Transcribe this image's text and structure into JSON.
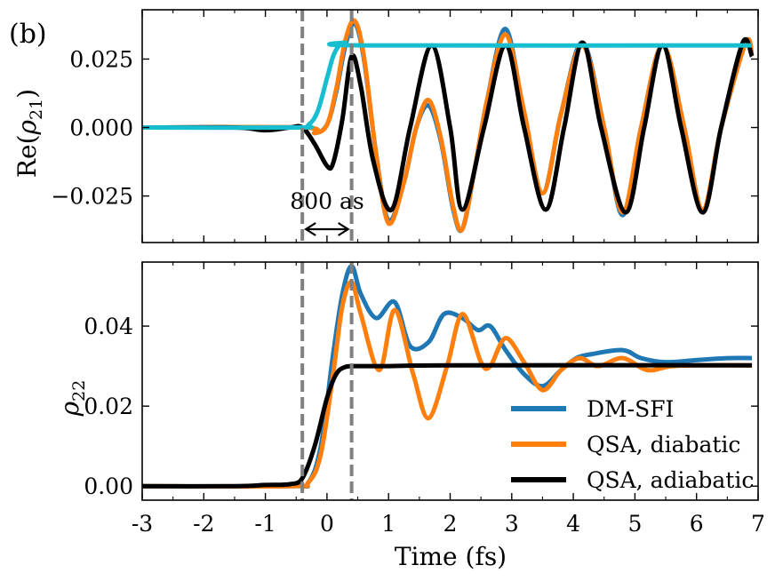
{
  "chart_data": {
    "type": "line",
    "panel_label": "(b)",
    "xlabel": "Time (fs)",
    "xlim": [
      -3,
      7
    ],
    "xticks": [
      -3,
      -2,
      -1,
      0,
      1,
      2,
      3,
      4,
      5,
      6,
      7
    ],
    "xtick_labels": [
      "-3",
      "-2",
      "-1",
      "0",
      "1",
      "2",
      "3",
      "4",
      "5",
      "6",
      "7"
    ],
    "markers": {
      "vlines_x": [
        -0.4,
        0.4
      ],
      "annotation": "800 as",
      "arrow_from": -0.4,
      "arrow_to": 0.4
    },
    "colors": {
      "dmsfi": "#1f77b4",
      "diabatic": "#ff7f0e",
      "adiabatic": "#000000",
      "cyan": "#17becf",
      "vline": "#808080"
    },
    "panels": [
      {
        "id": "top",
        "ylabel": "Re(ρ21)",
        "ylim": [
          -0.042,
          0.043
        ],
        "yticks": [
          -0.025,
          0.0,
          0.025
        ],
        "ytick_labels": [
          "−0.025",
          "0.000",
          "0.025"
        ],
        "series": [
          {
            "name": "DM-SFI",
            "color": "#1f77b4",
            "x": [
              -3,
              -0.4,
              -0.2,
              0,
              0.15,
              0.3,
              0.45,
              0.6,
              0.8,
              1.0,
              1.25,
              1.45,
              1.65,
              1.85,
              2.05,
              2.2,
              2.4,
              2.6,
              2.9,
              3.2,
              3.5,
              3.8,
              4.15,
              4.5,
              4.8,
              5.1,
              5.45,
              5.8,
              6.1,
              6.4,
              6.8,
              6.9
            ],
            "y": [
              0.0,
              0.0,
              -0.002,
              0.001,
              0.013,
              0.03,
              0.038,
              0.025,
              -0.01,
              -0.034,
              -0.02,
              0.0,
              0.008,
              -0.005,
              -0.03,
              -0.037,
              -0.015,
              0.01,
              0.036,
              0.005,
              -0.024,
              0.005,
              0.031,
              0.0,
              -0.032,
              0.0,
              0.03,
              0.0,
              -0.031,
              0.0,
              0.031,
              0.026
            ]
          },
          {
            "name": "QSA, diabatic",
            "color": "#ff7f0e",
            "x": [
              -3,
              -0.4,
              -0.2,
              0,
              0.15,
              0.3,
              0.45,
              0.6,
              0.8,
              1.0,
              1.25,
              1.45,
              1.65,
              1.85,
              2.05,
              2.2,
              2.4,
              2.6,
              2.9,
              3.2,
              3.5,
              3.8,
              4.15,
              4.5,
              4.8,
              5.1,
              5.45,
              5.8,
              6.1,
              6.4,
              6.8,
              6.9
            ],
            "y": [
              0.0,
              0.0,
              -0.002,
              0.001,
              0.014,
              0.032,
              0.039,
              0.026,
              -0.01,
              -0.035,
              -0.02,
              0.0,
              0.01,
              -0.004,
              -0.029,
              -0.037,
              -0.015,
              0.01,
              0.034,
              0.006,
              -0.024,
              0.005,
              0.03,
              0.0,
              -0.031,
              0.0,
              0.03,
              0.0,
              -0.03,
              0.0,
              0.031,
              0.026
            ]
          },
          {
            "name": "QSA, adiabatic",
            "color": "#000000",
            "x": [
              -3,
              -1.5,
              -1.0,
              -0.6,
              -0.4,
              -0.2,
              0.0,
              0.1,
              0.25,
              0.4,
              0.55,
              0.75,
              1.05,
              1.35,
              1.7,
              2.0,
              2.2,
              2.55,
              2.9,
              3.2,
              3.55,
              3.85,
              4.15,
              4.45,
              4.85,
              5.15,
              5.45,
              5.75,
              6.1,
              6.4,
              6.75,
              6.9
            ],
            "y": [
              0.0,
              0.0,
              -0.001,
              0.0,
              0.0,
              -0.006,
              -0.014,
              -0.013,
              0.003,
              0.026,
              0.015,
              -0.012,
              -0.03,
              0.0,
              0.03,
              0.0,
              -0.03,
              0.0,
              0.03,
              0.0,
              -0.03,
              0.0,
              0.031,
              0.0,
              -0.031,
              0.0,
              0.03,
              0.0,
              -0.031,
              0.0,
              0.031,
              0.026
            ]
          },
          {
            "name": "Adiabatic population (cyan)",
            "color": "#17becf",
            "x": [
              -3,
              -0.5,
              -0.3,
              -0.15,
              0.0,
              0.1,
              0.2,
              0.3,
              0.6,
              6.9
            ],
            "y": [
              0.0,
              0.0,
              0.001,
              0.006,
              0.018,
              0.026,
              0.03,
              0.031,
              0.03,
              0.03
            ]
          }
        ]
      },
      {
        "id": "bottom",
        "ylabel": "ρ22",
        "ylim": [
          -0.0035,
          0.056
        ],
        "yticks": [
          0.0,
          0.02,
          0.04
        ],
        "ytick_labels": [
          "0.00",
          "0.02",
          "0.04"
        ],
        "series": [
          {
            "name": "DM-SFI",
            "color": "#1f77b4",
            "x": [
              -3,
              -0.6,
              -0.3,
              -0.1,
              0.1,
              0.25,
              0.4,
              0.55,
              0.8,
              1.1,
              1.35,
              1.65,
              1.9,
              2.2,
              2.45,
              2.65,
              2.9,
              3.2,
              3.5,
              3.8,
              4.05,
              4.3,
              4.8,
              5.1,
              5.5,
              6.0,
              6.5,
              6.9
            ],
            "y": [
              0.0,
              0.0,
              0.001,
              0.01,
              0.033,
              0.048,
              0.055,
              0.048,
              0.042,
              0.046,
              0.035,
              0.036,
              0.043,
              0.042,
              0.039,
              0.04,
              0.034,
              0.028,
              0.025,
              0.029,
              0.032,
              0.033,
              0.034,
              0.032,
              0.031,
              0.0315,
              0.032,
              0.032
            ]
          },
          {
            "name": "QSA, diabatic",
            "color": "#ff7f0e",
            "x": [
              -3,
              -0.6,
              -0.3,
              -0.1,
              0.1,
              0.25,
              0.4,
              0.55,
              0.85,
              1.1,
              1.4,
              1.65,
              1.95,
              2.2,
              2.5,
              2.65,
              2.9,
              3.2,
              3.5,
              3.8,
              4.1,
              4.4,
              4.8,
              5.2,
              5.6,
              6.2,
              6.9
            ],
            "y": [
              0.0,
              0.0,
              0.001,
              0.008,
              0.028,
              0.045,
              0.051,
              0.043,
              0.029,
              0.044,
              0.028,
              0.017,
              0.03,
              0.043,
              0.031,
              0.03,
              0.037,
              0.031,
              0.024,
              0.029,
              0.032,
              0.03,
              0.032,
              0.029,
              0.03,
              0.0302,
              0.0302
            ]
          },
          {
            "name": "QSA, adiabatic",
            "color": "#000000",
            "x": [
              -3,
              -1.5,
              -1.0,
              -0.6,
              -0.4,
              -0.2,
              0.0,
              0.15,
              0.3,
              0.5,
              1.0,
              2.0,
              6.9
            ],
            "y": [
              0.0,
              0.0,
              0.0003,
              0.0005,
              0.002,
              0.01,
              0.022,
              0.028,
              0.0298,
              0.03,
              0.03,
              0.0302,
              0.0302
            ]
          }
        ]
      }
    ],
    "legend": {
      "placement": "lower-right of bottom panel",
      "entries": [
        {
          "label": "DM-SFI",
          "color": "#1f77b4"
        },
        {
          "label": "QSA, diabatic",
          "color": "#ff7f0e"
        },
        {
          "label": "QSA, adiabatic",
          "color": "#000000"
        }
      ]
    }
  }
}
